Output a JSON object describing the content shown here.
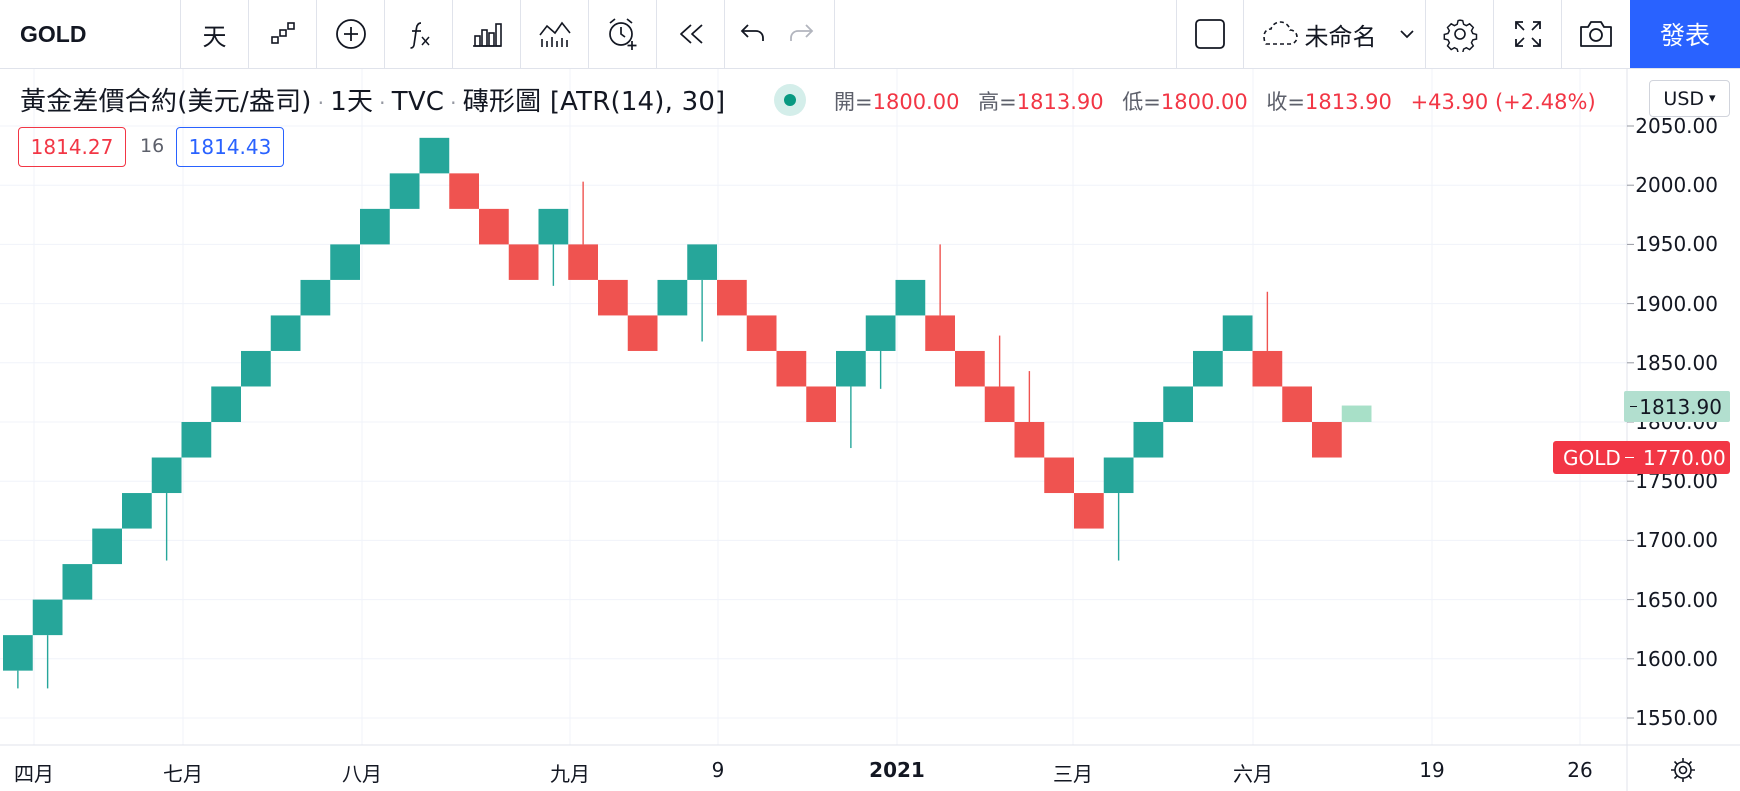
{
  "toolbar": {
    "symbol": "GOLD",
    "interval": "天",
    "layout_name": "未命名",
    "publish_label": "發表"
  },
  "legend": {
    "title": "黃金差價合約(美元/盎司)",
    "interval": "1天",
    "exchange": "TVC",
    "chart_type": "磚形圖",
    "params": "[ATR(14), 30]",
    "open_label": "開=",
    "open": "1800.00",
    "high_label": "高=",
    "high": "1813.90",
    "low_label": "低=",
    "low": "1800.00",
    "close_label": "收=",
    "close": "1813.90",
    "change": "+43.90 (+2.48%)",
    "bid": "1814.27",
    "spread": "16",
    "ask": "1814.43"
  },
  "currency": "USD",
  "price_axis_labels": [
    "2050.00",
    "2000.00",
    "1950.00",
    "1900.00",
    "1850.00",
    "1800.00",
    "1750.00",
    "1700.00",
    "1650.00",
    "1600.00",
    "1550.00"
  ],
  "time_axis_labels": [
    "四月",
    "七月",
    "八月",
    "九月",
    "9",
    "2021",
    "三月",
    "六月",
    "19",
    "26"
  ],
  "last_price": "1813.90",
  "symbol_tag": {
    "symbol": "GOLD",
    "price": "1770.00"
  },
  "colors": {
    "up": "#26a69a",
    "down": "#ef5350",
    "projected": "#a8e0c8",
    "accent": "#2962ff"
  },
  "chart_data": {
    "type": "renko",
    "box_size": 30,
    "ylim": [
      1530,
      2070
    ],
    "bricks": [
      {
        "open": 1590,
        "close": 1620,
        "wick_low": 1575
      },
      {
        "open": 1620,
        "close": 1650,
        "wick_low": 1575
      },
      {
        "open": 1650,
        "close": 1680
      },
      {
        "open": 1680,
        "close": 1710
      },
      {
        "open": 1710,
        "close": 1740
      },
      {
        "open": 1740,
        "close": 1770,
        "wick_low": 1683
      },
      {
        "open": 1770,
        "close": 1800
      },
      {
        "open": 1800,
        "close": 1830
      },
      {
        "open": 1830,
        "close": 1860
      },
      {
        "open": 1860,
        "close": 1890
      },
      {
        "open": 1890,
        "close": 1920
      },
      {
        "open": 1920,
        "close": 1950
      },
      {
        "open": 1950,
        "close": 1980
      },
      {
        "open": 1980,
        "close": 2010
      },
      {
        "open": 2010,
        "close": 2040
      },
      {
        "open": 2010,
        "close": 1980
      },
      {
        "open": 1980,
        "close": 1950
      },
      {
        "open": 1950,
        "close": 1920
      },
      {
        "open": 1950,
        "close": 1980,
        "wick_low": 1915
      },
      {
        "open": 1950,
        "close": 1920,
        "wick_high": 2003
      },
      {
        "open": 1920,
        "close": 1890
      },
      {
        "open": 1890,
        "close": 1860
      },
      {
        "open": 1890,
        "close": 1920
      },
      {
        "open": 1920,
        "close": 1950,
        "wick_low": 1868
      },
      {
        "open": 1920,
        "close": 1890
      },
      {
        "open": 1890,
        "close": 1860
      },
      {
        "open": 1860,
        "close": 1830
      },
      {
        "open": 1830,
        "close": 1800
      },
      {
        "open": 1830,
        "close": 1860,
        "wick_low": 1778
      },
      {
        "open": 1860,
        "close": 1890,
        "wick_low": 1828
      },
      {
        "open": 1890,
        "close": 1920
      },
      {
        "open": 1890,
        "close": 1860,
        "wick_high": 1950
      },
      {
        "open": 1860,
        "close": 1830
      },
      {
        "open": 1830,
        "close": 1800,
        "wick_high": 1873
      },
      {
        "open": 1800,
        "close": 1770,
        "wick_high": 1843
      },
      {
        "open": 1770,
        "close": 1740
      },
      {
        "open": 1740,
        "close": 1710
      },
      {
        "open": 1740,
        "close": 1770,
        "wick_low": 1683
      },
      {
        "open": 1770,
        "close": 1800
      },
      {
        "open": 1800,
        "close": 1830
      },
      {
        "open": 1830,
        "close": 1860
      },
      {
        "open": 1860,
        "close": 1890
      },
      {
        "open": 1860,
        "close": 1830,
        "wick_high": 1910
      },
      {
        "open": 1830,
        "close": 1800
      },
      {
        "open": 1800,
        "close": 1770
      },
      {
        "open": 1800,
        "close": 1813.9,
        "projected": true
      }
    ]
  }
}
